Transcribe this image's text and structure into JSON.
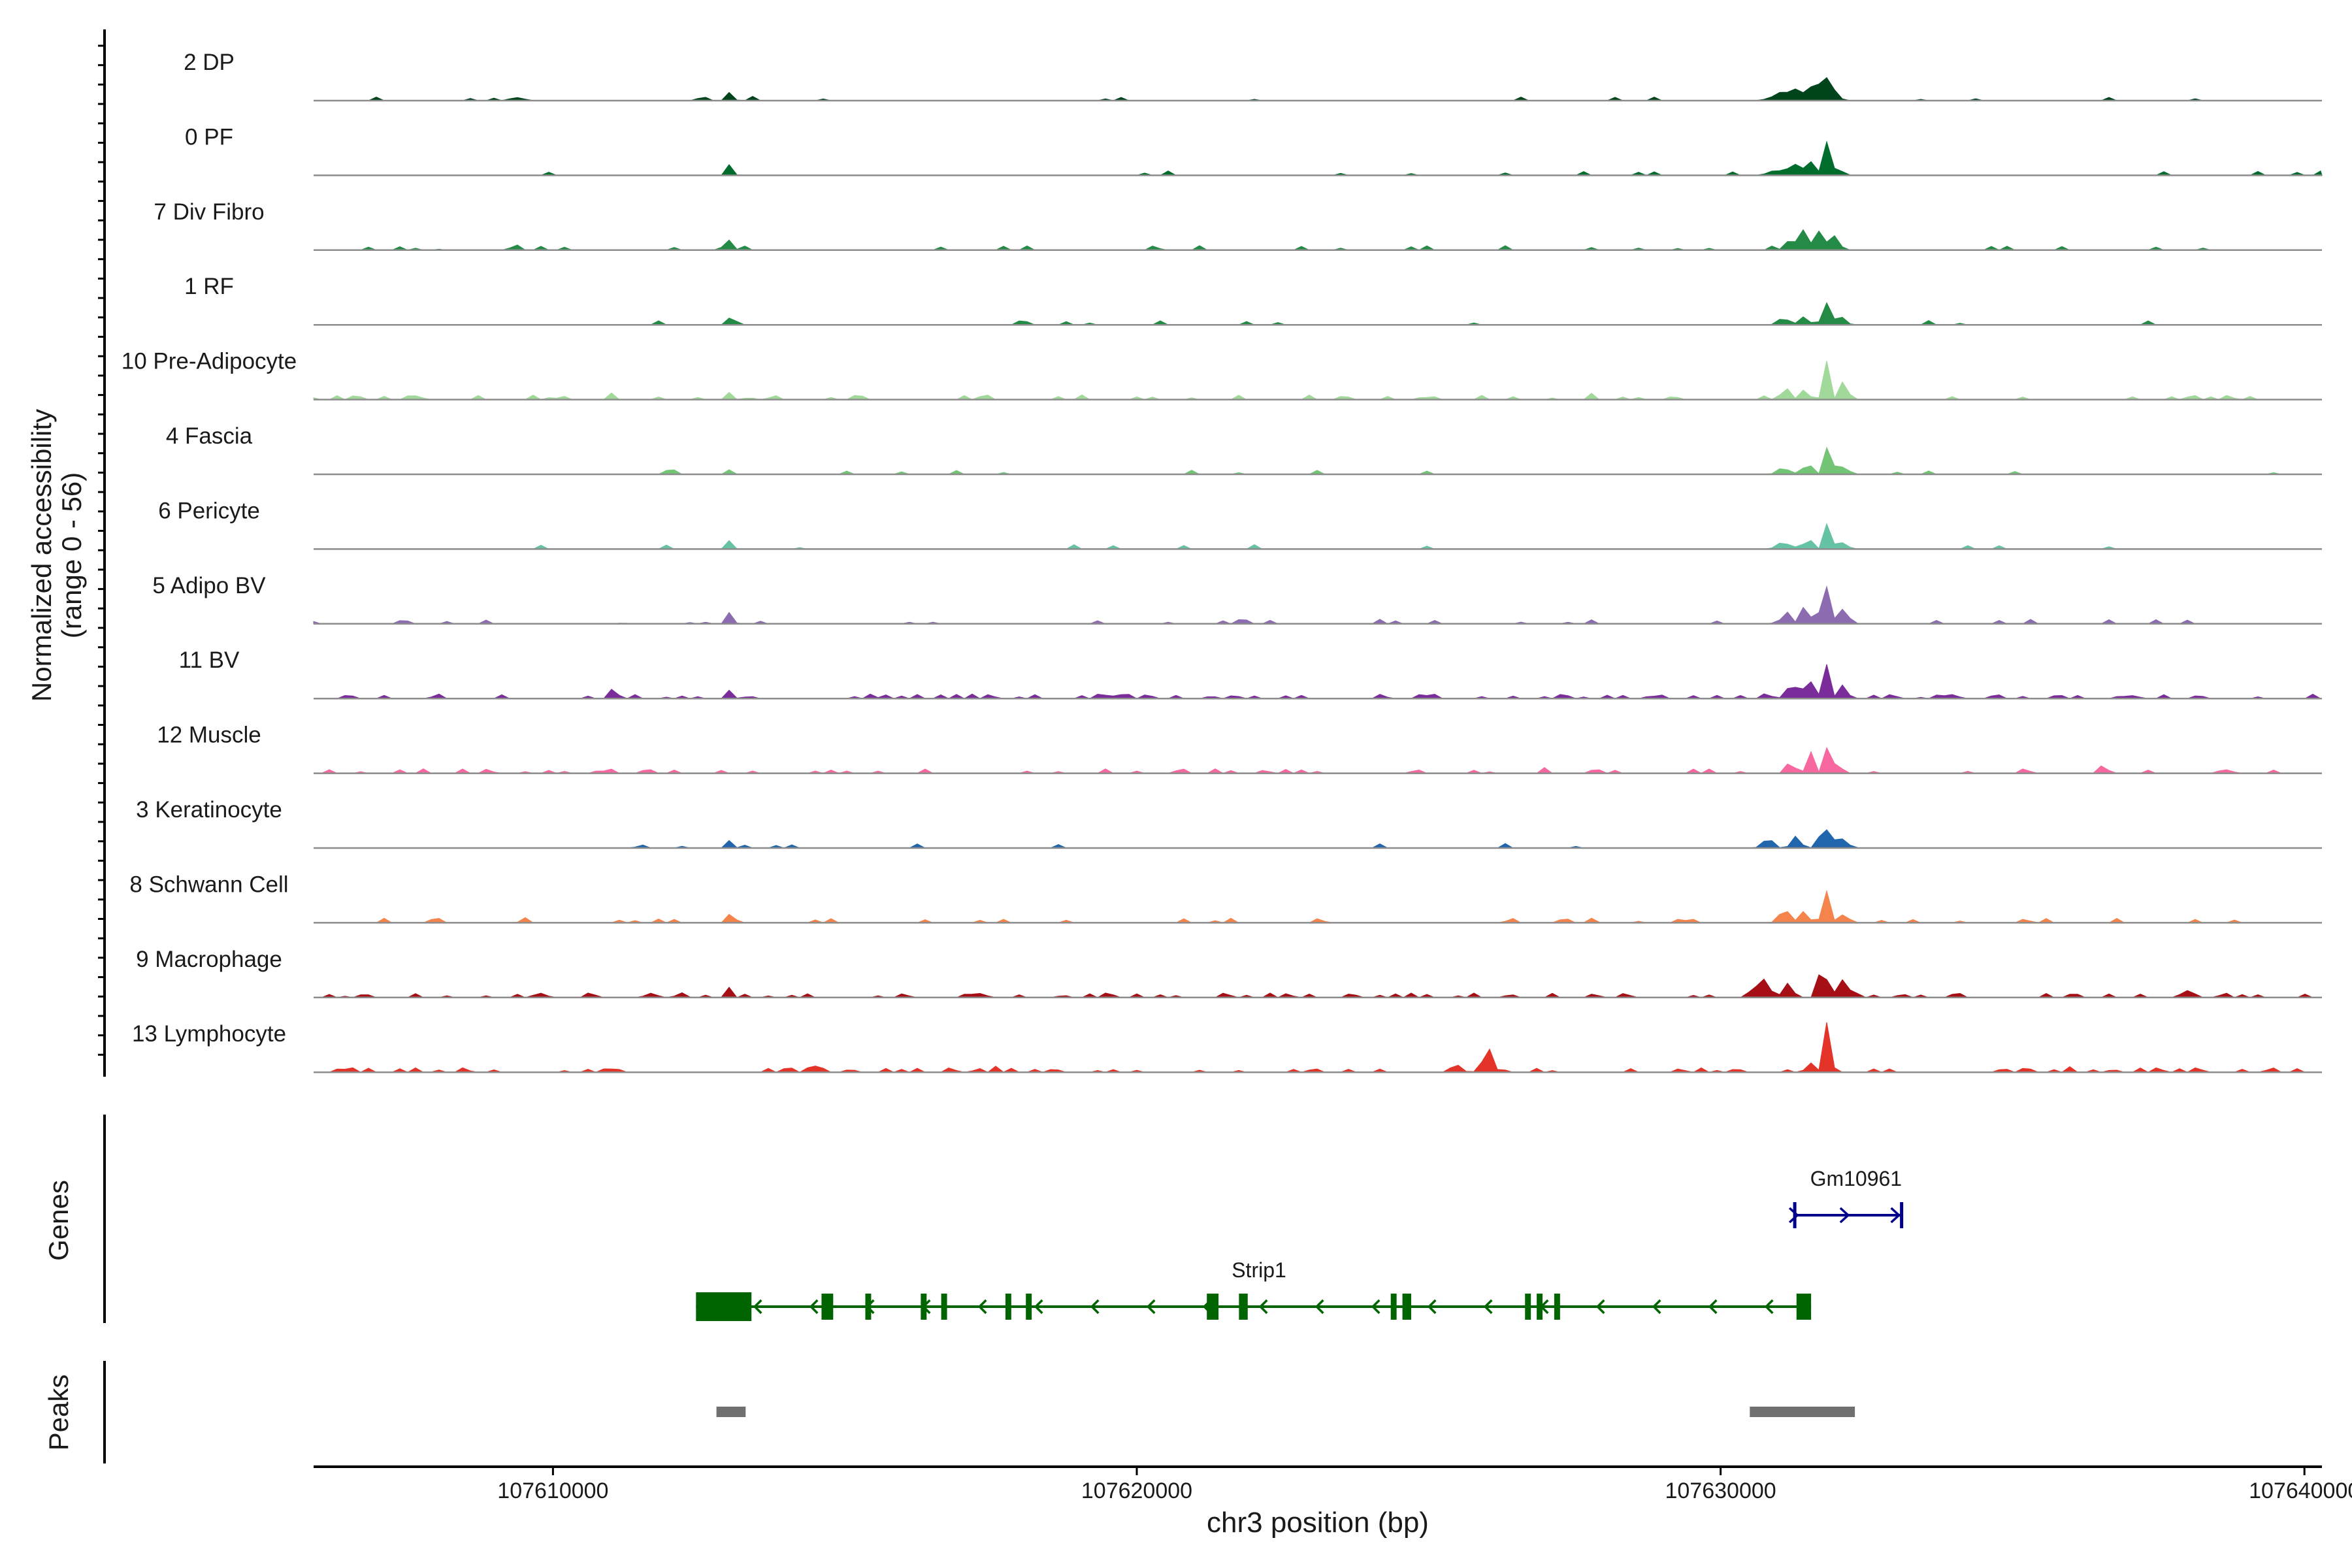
{
  "chart_data": {
    "type": "area",
    "title": "",
    "ylabel_line1": "Normalized accessibility",
    "ylabel_line2": "(range 0 - 56)",
    "yrange": [
      0,
      56
    ],
    "xlabel": "chr3 position (bp)",
    "xlim": [
      107605900,
      107640300
    ],
    "xticks": [
      107610000,
      107620000,
      107630000,
      107640000
    ],
    "xtick_labels": [
      "107610000",
      "107620000",
      "107630000",
      "107640000"
    ],
    "genes_label": "Genes",
    "peaks_label": "Peaks",
    "tracks": [
      {
        "name": "2 DP",
        "color": "#00441b",
        "noise": 0.06,
        "peaks": [
          [
            107613050,
            60,
            20
          ],
          [
            107631000,
            200,
            12
          ],
          [
            107631250,
            110,
            18
          ],
          [
            107631500,
            110,
            26
          ],
          [
            107631750,
            90,
            34
          ],
          [
            107631900,
            130,
            18
          ],
          [
            107609400,
            140,
            6
          ],
          [
            107638100,
            50,
            4
          ]
        ]
      },
      {
        "name": "0 PF",
        "color": "#006d2c",
        "noise": 0.05,
        "peaks": [
          [
            107613050,
            60,
            16
          ],
          [
            107631000,
            200,
            10
          ],
          [
            107631300,
            110,
            18
          ],
          [
            107631550,
            100,
            24
          ],
          [
            107631800,
            80,
            36
          ],
          [
            107632000,
            120,
            14
          ]
        ]
      },
      {
        "name": "7 Div Fibro",
        "color": "#238b45",
        "noise": 0.12,
        "peaks": [
          [
            107613050,
            60,
            18
          ],
          [
            107613300,
            50,
            8
          ],
          [
            107631200,
            120,
            18
          ],
          [
            107631450,
            90,
            30
          ],
          [
            107631700,
            90,
            36
          ],
          [
            107631950,
            110,
            18
          ],
          [
            107609400,
            60,
            8
          ],
          [
            107609800,
            50,
            6
          ],
          [
            107608000,
            50,
            5
          ]
        ]
      },
      {
        "name": "1 RF",
        "color": "#238b45",
        "noise": 0.05,
        "peaks": [
          [
            107613050,
            50,
            14
          ],
          [
            107631100,
            140,
            10
          ],
          [
            107631450,
            100,
            14
          ],
          [
            107631800,
            80,
            40
          ],
          [
            107632050,
            120,
            12
          ]
        ]
      },
      {
        "name": "10 Pre-Adipocyte",
        "color": "#a1d99b",
        "noise": 0.22,
        "peaks": [
          [
            107613050,
            50,
            20
          ],
          [
            107613350,
            50,
            14
          ],
          [
            107631100,
            120,
            12
          ],
          [
            107631450,
            80,
            22
          ],
          [
            107631800,
            70,
            58
          ],
          [
            107632100,
            90,
            20
          ],
          [
            107627800,
            40,
            10
          ],
          [
            107611000,
            40,
            8
          ],
          [
            107615900,
            40,
            7
          ],
          [
            107619000,
            40,
            7
          ]
        ]
      },
      {
        "name": "4 Fascia",
        "color": "#74c476",
        "noise": 0.05,
        "peaks": [
          [
            107613050,
            50,
            14
          ],
          [
            107631100,
            160,
            10
          ],
          [
            107631500,
            100,
            18
          ],
          [
            107631850,
            80,
            38
          ],
          [
            107632100,
            120,
            12
          ]
        ]
      },
      {
        "name": "6 Pericyte",
        "color": "#66c2a4",
        "noise": 0.05,
        "peaks": [
          [
            107613050,
            50,
            16
          ],
          [
            107631100,
            160,
            10
          ],
          [
            107631500,
            90,
            22
          ],
          [
            107631850,
            80,
            36
          ],
          [
            107632100,
            100,
            12
          ]
        ]
      },
      {
        "name": "5 Adipo BV",
        "color": "#8c6bb1",
        "noise": 0.12,
        "peaks": [
          [
            107613050,
            60,
            22
          ],
          [
            107631100,
            150,
            12
          ],
          [
            107631450,
            100,
            24
          ],
          [
            107631800,
            100,
            56
          ],
          [
            107632100,
            120,
            20
          ],
          [
            107611200,
            50,
            6
          ]
        ]
      },
      {
        "name": "11 BV",
        "color": "#7a2d9a",
        "noise": 0.35,
        "peaks": [
          [
            107613050,
            60,
            14
          ],
          [
            107631200,
            120,
            22
          ],
          [
            107631500,
            90,
            34
          ],
          [
            107631800,
            80,
            48
          ],
          [
            107632100,
            100,
            18
          ],
          [
            107630800,
            80,
            10
          ],
          [
            107611000,
            40,
            12
          ],
          [
            107615500,
            50,
            10
          ]
        ]
      },
      {
        "name": "12 Muscle",
        "color": "#f768a1",
        "noise": 0.25,
        "peaks": [
          [
            107631200,
            90,
            20
          ],
          [
            107631550,
            70,
            30
          ],
          [
            107631800,
            60,
            58
          ],
          [
            107632000,
            80,
            18
          ],
          [
            107636500,
            60,
            10
          ],
          [
            107627000,
            60,
            8
          ],
          [
            107626000,
            40,
            7
          ]
        ]
      },
      {
        "name": "3 Keratinocyte",
        "color": "#2166ac",
        "noise": 0.06,
        "peaks": [
          [
            107613050,
            60,
            14
          ],
          [
            107630800,
            120,
            14
          ],
          [
            107631300,
            120,
            12
          ],
          [
            107631750,
            90,
            40
          ],
          [
            107632050,
            160,
            16
          ],
          [
            107611500,
            80,
            8
          ]
        ]
      },
      {
        "name": "8 Schwann Cell",
        "color": "#f4844b",
        "noise": 0.15,
        "peaks": [
          [
            107613050,
            60,
            16
          ],
          [
            107631100,
            140,
            16
          ],
          [
            107631450,
            90,
            16
          ],
          [
            107631800,
            80,
            40
          ],
          [
            107632100,
            120,
            12
          ],
          [
            107609500,
            80,
            7
          ],
          [
            107627800,
            80,
            8
          ]
        ]
      },
      {
        "name": "9 Macrophage",
        "color": "#a50f15",
        "noise": 0.3,
        "peaks": [
          [
            107613000,
            60,
            22
          ],
          [
            107612200,
            100,
            10
          ],
          [
            107630700,
            130,
            28
          ],
          [
            107631150,
            110,
            22
          ],
          [
            107631750,
            80,
            78
          ],
          [
            107632100,
            100,
            22
          ],
          [
            107617400,
            50,
            8
          ],
          [
            107638000,
            40,
            6
          ]
        ]
      },
      {
        "name": "13 Lymphocyte",
        "color": "#e4342a",
        "noise": 0.3,
        "peaks": [
          [
            107631800,
            50,
            94
          ],
          [
            107631500,
            60,
            24
          ],
          [
            107626000,
            120,
            30
          ],
          [
            107625500,
            100,
            10
          ],
          [
            107617600,
            60,
            14
          ],
          [
            107614500,
            50,
            10
          ],
          [
            107608000,
            50,
            8
          ],
          [
            107636000,
            50,
            8
          ]
        ]
      }
    ],
    "genes": [
      {
        "name": "Gm10961",
        "strand": "+",
        "start": 107631270,
        "end": 107633100,
        "color": "#00008b"
      },
      {
        "name": "Strip1",
        "strand": "-",
        "start": 107612450,
        "end": 107631550,
        "color": "#006400",
        "exons": [
          [
            107612450,
            107613400
          ],
          [
            107614600,
            107614800
          ],
          [
            107615350,
            107615450
          ],
          [
            107616300,
            107616400
          ],
          [
            107616650,
            107616750
          ],
          [
            107617750,
            107617850
          ],
          [
            107618100,
            107618200
          ],
          [
            107621200,
            107621400
          ],
          [
            107621750,
            107621900
          ],
          [
            107624350,
            107624450
          ],
          [
            107624550,
            107624700
          ],
          [
            107626650,
            107626750
          ],
          [
            107626850,
            107626950
          ],
          [
            107627150,
            107627250
          ],
          [
            107631300,
            107631550
          ]
        ]
      }
    ],
    "peaks": [
      [
        107612800,
        107613300
      ],
      [
        107630500,
        107632300
      ]
    ]
  }
}
